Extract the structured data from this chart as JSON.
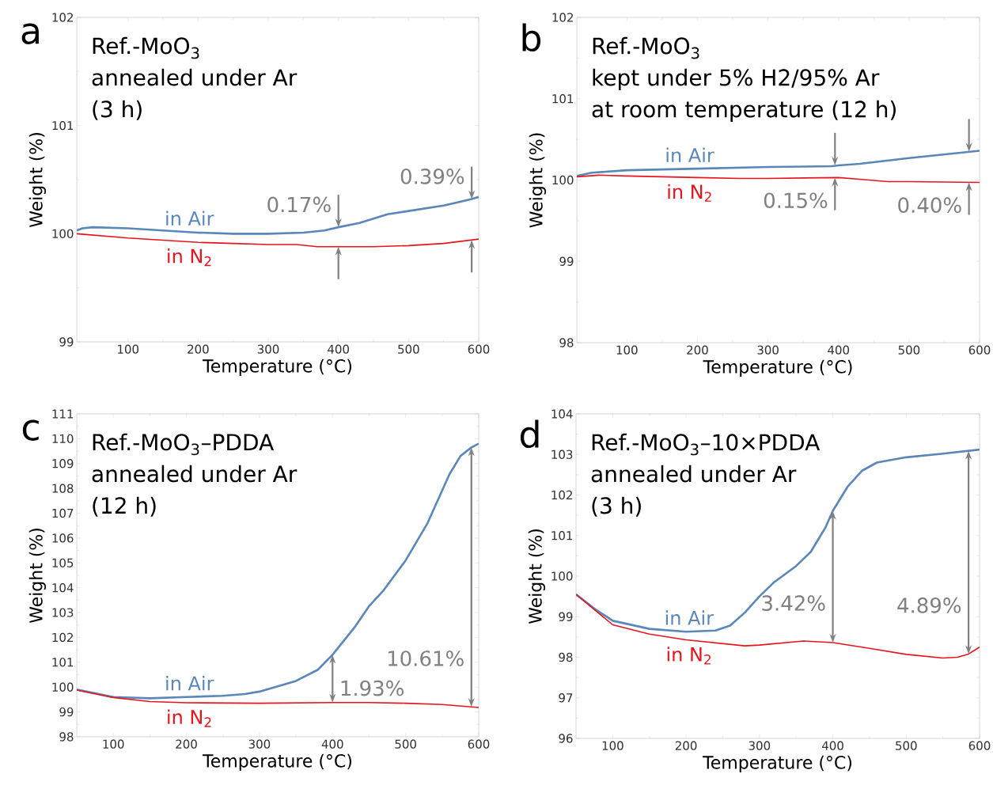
{
  "chart_data": [
    {
      "type": "line",
      "xlabel": "Temperature (°C)",
      "ylabel": "Weight (%)",
      "xlim": [
        27,
        600
      ],
      "ylim": [
        99,
        102
      ],
      "xticks": [
        100,
        200,
        300,
        400,
        500,
        600
      ],
      "yticks": [
        99,
        100,
        101,
        102
      ],
      "annotations": [
        "a",
        "Ref.-MoO$_{3}$",
        "annealed under Ar",
        "(3 h)",
        {
          "text": "0.17%",
          "x": 400,
          "y": 100.06
        },
        {
          "text": "0.39%",
          "x": 590,
          "y": 100.32
        }
      ],
      "series": [
        {
          "name": "in Air",
          "color": "#5a87b9",
          "x": [
            27,
            35,
            50,
            100,
            150,
            200,
            250,
            300,
            350,
            380,
            400,
            430,
            450,
            470,
            500,
            550,
            590,
            600
          ],
          "values": [
            100.03,
            100.05,
            100.06,
            100.05,
            100.03,
            100.01,
            100.0,
            100.0,
            100.01,
            100.03,
            100.06,
            100.1,
            100.14,
            100.18,
            100.21,
            100.26,
            100.32,
            100.34
          ]
        },
        {
          "name": "in N$_{2}$",
          "color": "#e8141c",
          "x": [
            27,
            100,
            200,
            250,
            300,
            340,
            370,
            400,
            450,
            500,
            550,
            600
          ],
          "values": [
            100.0,
            99.96,
            99.92,
            99.91,
            99.9,
            99.9,
            99.88,
            99.88,
            99.88,
            99.89,
            99.91,
            99.95
          ]
        }
      ]
    },
    {
      "type": "line",
      "xlabel": "Temperature (°C)",
      "ylabel": "Weight (%)",
      "xlim": [
        29,
        600
      ],
      "ylim": [
        98,
        102
      ],
      "xticks": [
        100,
        200,
        300,
        400,
        500,
        600
      ],
      "yticks": [
        98,
        99,
        100,
        101,
        102
      ],
      "annotations": [
        "b",
        "Ref.-MoO$_{3}$",
        "kept under 5% H2/95% Ar",
        "at room temperature (12 h)",
        {
          "text": "0.15%",
          "x": 395,
          "y": 100.18
        },
        {
          "text": "0.40%",
          "x": 585,
          "y": 100.35
        }
      ],
      "series": [
        {
          "name": "in Air",
          "color": "#5a87b9",
          "x": [
            29,
            50,
            100,
            200,
            300,
            390,
            400,
            430,
            500,
            600
          ],
          "values": [
            100.05,
            100.09,
            100.12,
            100.14,
            100.16,
            100.17,
            100.18,
            100.2,
            100.27,
            100.36
          ]
        },
        {
          "name": "in N$_{2}$",
          "color": "#e8141c",
          "x": [
            29,
            60,
            100,
            200,
            260,
            300,
            400,
            430,
            470,
            500,
            600
          ],
          "values": [
            100.04,
            100.06,
            100.05,
            100.03,
            100.02,
            100.02,
            100.03,
            100.01,
            99.98,
            99.98,
            99.97
          ]
        }
      ]
    },
    {
      "type": "line",
      "xlabel": "Temperature (°C)",
      "ylabel": "Weight (%)",
      "xlim": [
        50,
        600
      ],
      "ylim": [
        98,
        111
      ],
      "xticks": [
        100,
        200,
        300,
        400,
        500,
        600
      ],
      "yticks": [
        98,
        99,
        100,
        101,
        102,
        103,
        104,
        105,
        106,
        107,
        108,
        109,
        110,
        111
      ],
      "annotations": [
        "c",
        "Ref.-MoO$_{3}$–PDDA",
        "annealed under Ar",
        "(12 h)",
        {
          "text": "1.93%",
          "x": 400,
          "y": 99.38
        },
        {
          "text": "10.61%",
          "x": 590,
          "y": 99.2
        }
      ],
      "series": [
        {
          "name": "in Air",
          "color": "#5a87b9",
          "x": [
            50,
            100,
            150,
            200,
            250,
            280,
            300,
            350,
            380,
            400,
            430,
            450,
            470,
            500,
            530,
            560,
            575,
            590,
            600
          ],
          "values": [
            99.9,
            99.6,
            99.55,
            99.6,
            99.65,
            99.72,
            99.82,
            100.25,
            100.7,
            101.3,
            102.4,
            103.26,
            103.9,
            105.1,
            106.6,
            108.57,
            109.3,
            109.65,
            109.8
          ]
        },
        {
          "name": "in N$_{2}$",
          "color": "#e8141c",
          "x": [
            50,
            100,
            150,
            200,
            300,
            400,
            450,
            500,
            550,
            600
          ],
          "values": [
            99.88,
            99.58,
            99.42,
            99.37,
            99.35,
            99.38,
            99.38,
            99.35,
            99.3,
            99.18
          ]
        }
      ]
    },
    {
      "type": "line",
      "xlabel": "Temperature (°C)",
      "ylabel": "Weight (%)",
      "xlim": [
        50,
        600
      ],
      "ylim": [
        96,
        104
      ],
      "xticks": [
        100,
        200,
        300,
        400,
        500,
        600
      ],
      "yticks": [
        96,
        97,
        98,
        99,
        100,
        101,
        102,
        103,
        104
      ],
      "annotations": [
        "d",
        "Ref.-MoO$_{3}$–10×PDDA",
        "annealed under Ar",
        "(3 h)",
        {
          "text": "3.42%",
          "x": 400,
          "y": 98.36
        },
        {
          "text": "4.89%",
          "x": 585,
          "y": 98.08
        }
      ],
      "series": [
        {
          "name": "in Air",
          "color": "#5a87b9",
          "x": [
            50,
            75,
            100,
            150,
            200,
            240,
            260,
            280,
            300,
            320,
            350,
            370,
            390,
            400,
            420,
            440,
            460,
            500,
            550,
            600
          ],
          "values": [
            99.55,
            99.2,
            98.9,
            98.7,
            98.63,
            98.66,
            98.78,
            99.1,
            99.5,
            99.85,
            100.25,
            100.6,
            101.2,
            101.61,
            102.2,
            102.6,
            102.8,
            102.93,
            103.02,
            103.12
          ]
        },
        {
          "name": "in N$_{2}$",
          "color": "#e8141c",
          "x": [
            50,
            100,
            150,
            200,
            280,
            300,
            360,
            400,
            450,
            500,
            550,
            570,
            585,
            600
          ],
          "values": [
            99.55,
            98.8,
            98.57,
            98.43,
            98.28,
            98.3,
            98.4,
            98.36,
            98.22,
            98.07,
            97.98,
            98.0,
            98.08,
            98.25
          ]
        }
      ]
    }
  ]
}
